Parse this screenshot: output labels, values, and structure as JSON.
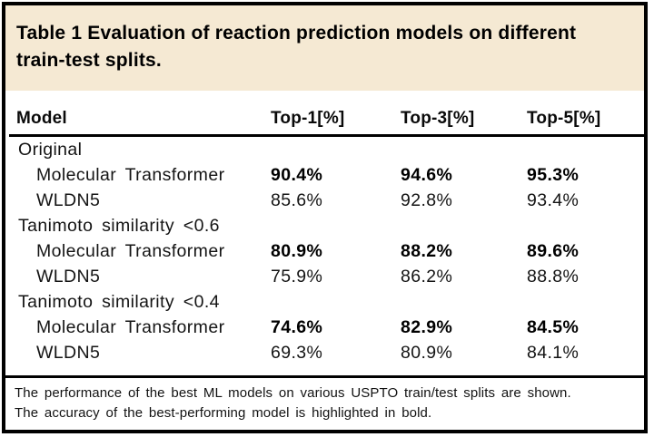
{
  "title": {
    "line1": "Table 1 Evaluation of reaction prediction models on different",
    "line2": "train-test splits."
  },
  "colors": {
    "header_bg": "#f5e9d3",
    "rule": "#000000"
  },
  "table": {
    "columns": [
      "Model",
      "Top-1[%]",
      "Top-3[%]",
      "Top-5[%]"
    ],
    "sections": [
      {
        "label": "Original",
        "rows": [
          {
            "model": "Molecular Transformer",
            "bold": true,
            "values": [
              "90.4%",
              "94.6%",
              "95.3%"
            ]
          },
          {
            "model": "WLDN5",
            "bold": false,
            "values": [
              "85.6%",
              "92.8%",
              "93.4%"
            ]
          }
        ]
      },
      {
        "label": "Tanimoto similarity <0.6",
        "rows": [
          {
            "model": "Molecular Transformer",
            "bold": true,
            "values": [
              "80.9%",
              "88.2%",
              "89.6%"
            ]
          },
          {
            "model": "WLDN5",
            "bold": false,
            "values": [
              "75.9%",
              "86.2%",
              "88.8%"
            ]
          }
        ]
      },
      {
        "label": "Tanimoto similarity <0.4",
        "rows": [
          {
            "model": "Molecular Transformer",
            "bold": true,
            "values": [
              "74.6%",
              "82.9%",
              "84.5%"
            ]
          },
          {
            "model": "WLDN5",
            "bold": false,
            "values": [
              "69.3%",
              "80.9%",
              "84.1%"
            ]
          }
        ]
      }
    ]
  },
  "footnote": {
    "line1": "The performance of the best ML models on various USPTO train/test splits are shown.",
    "line2": "The accuracy of the best-performing model is highlighted in bold."
  },
  "chart_data": {
    "type": "table",
    "title": "Table 1 Evaluation of reaction prediction models on different train-test splits.",
    "columns": [
      "Model",
      "Top-1[%]",
      "Top-3[%]",
      "Top-5[%]"
    ],
    "rows": [
      [
        "Original",
        "",
        "",
        ""
      ],
      [
        "Molecular Transformer",
        "90.4%",
        "94.6%",
        "95.3%"
      ],
      [
        "WLDN5",
        "85.6%",
        "92.8%",
        "93.4%"
      ],
      [
        "Tanimoto similarity <0.6",
        "",
        "",
        ""
      ],
      [
        "Molecular Transformer",
        "80.9%",
        "88.2%",
        "89.6%"
      ],
      [
        "WLDN5",
        "75.9%",
        "86.2%",
        "88.8%"
      ],
      [
        "Tanimoto similarity <0.4",
        "",
        "",
        ""
      ],
      [
        "Molecular Transformer",
        "74.6%",
        "82.9%",
        "84.5%"
      ],
      [
        "WLDN5",
        "69.3%",
        "80.9%",
        "84.1%"
      ]
    ],
    "bold_rows": [
      1,
      4,
      7
    ],
    "footnotes": [
      "The performance of the best ML models on various USPTO train/test splits are shown.",
      "The accuracy of the best-performing model is highlighted in bold."
    ]
  }
}
